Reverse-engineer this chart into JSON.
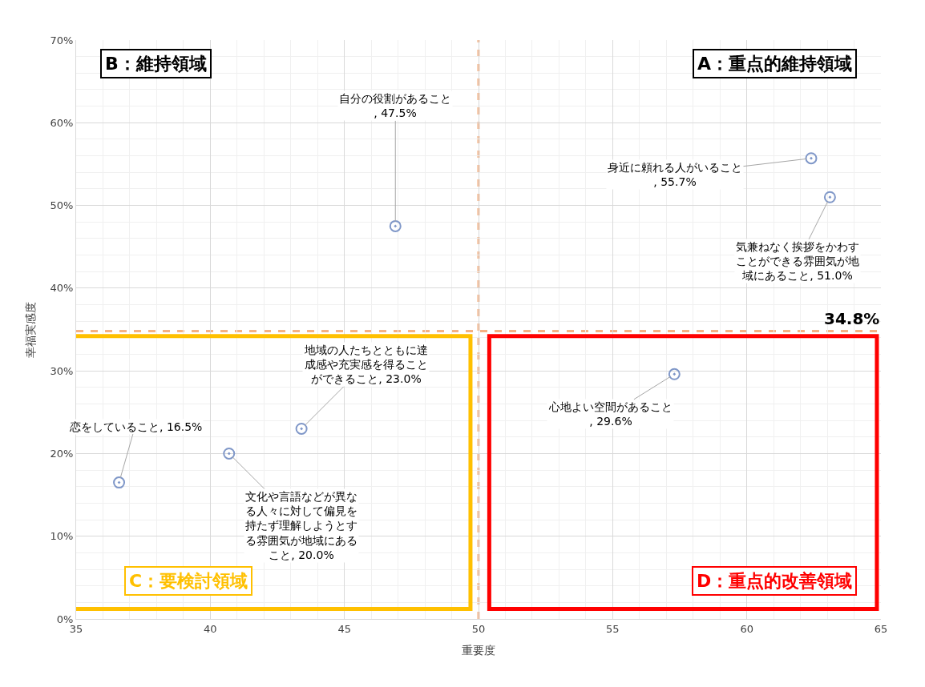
{
  "chart_data": {
    "type": "scatter",
    "xlabel": "重要度",
    "ylabel": "幸福実感度",
    "x": [
      46.9,
      62.4,
      63.1,
      36.6,
      40.7,
      43.4,
      57.3
    ],
    "series": [
      {
        "color": "#7f97c8",
        "values": [
          47.5,
          55.7,
          51.0,
          16.5,
          20.0,
          23.0,
          29.6
        ]
      }
    ],
    "marker": "circle",
    "xlim": [
      35,
      65
    ],
    "xticks": [
      35,
      40,
      45,
      50,
      55,
      60,
      65
    ],
    "ylim": [
      0,
      70
    ],
    "yticks": [
      {
        "value": 0,
        "label": "0%"
      },
      {
        "value": 10,
        "label": "10%"
      },
      {
        "value": 20,
        "label": "20%"
      },
      {
        "value": 30,
        "label": "30%"
      },
      {
        "value": 40,
        "label": "40%"
      },
      {
        "value": 50,
        "label": "50%"
      },
      {
        "value": 60,
        "label": "60%"
      },
      {
        "value": 70,
        "label": "70%"
      }
    ],
    "grid": true,
    "ref_lines": [
      {
        "axis": "x",
        "value": 50,
        "color": "#f4b183",
        "line_style": "dashed"
      },
      {
        "axis": "y",
        "value": 34.8,
        "label": "34.8%",
        "color": "#f4b183",
        "line_style": "dashed"
      }
    ],
    "annotations": [
      {
        "text": "自分の役割があること, 47.5%",
        "x": 46.9,
        "y": 47.5
      },
      {
        "text": "身近に頼れる人がいること, 55.7%",
        "x": 62.4,
        "y": 55.7
      },
      {
        "text": "気兼ねなく挨拶をかわすことができる雰囲気が地域にあること, 51.0%",
        "x": 63.1,
        "y": 51.0
      },
      {
        "text": "恋をしていること, 16.5%",
        "x": 36.6,
        "y": 16.5
      },
      {
        "text": "文化や言語などが異なる人々に対して偏見を持たず理解しようとする雰囲気が地域にあること, 20.0%",
        "x": 40.7,
        "y": 20.0
      },
      {
        "text": "地域の人たちとともに達成感や充実感を得ることができること, 23.0%",
        "x": 43.4,
        "y": 23.0
      },
      {
        "text": "心地よい空間があること, 29.6%",
        "x": 57.3,
        "y": 29.6
      },
      "B：維持領域",
      "A：重点的維持領域",
      "C：要検討領域",
      "D：重点的改善領域"
    ]
  }
}
